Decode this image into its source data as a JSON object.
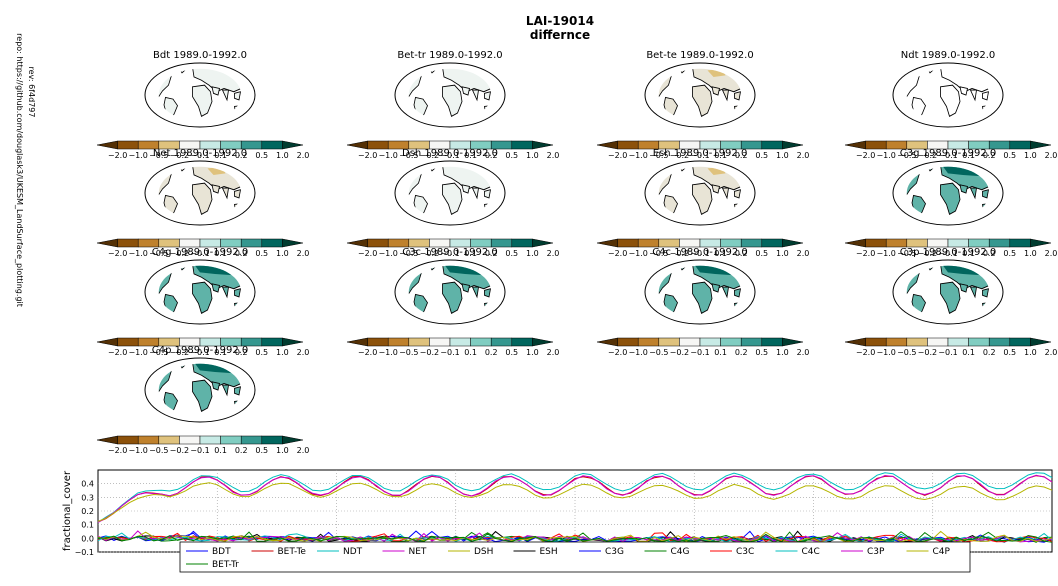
{
  "figure": {
    "title_line1": "LAI-19014",
    "title_line2": "differnce",
    "rev_line1": "rev: 6f4d797",
    "rev_line2": "repo: https://github.com/douglask3/UKESM_LandSurface_plotting.git"
  },
  "colorbar": {
    "colors": [
      "#543005",
      "#8c510a",
      "#bf812d",
      "#dfc27d",
      "#f6f6f4",
      "#c7eae5",
      "#80cdc1",
      "#35978f",
      "#01665e",
      "#003c30"
    ],
    "ticks": [
      "−2.0",
      "−1.0",
      "−0.5",
      "−0.2",
      "−0.1",
      "0.1",
      "0.2",
      "0.5",
      "1.0",
      "2.0"
    ]
  },
  "maps": [
    {
      "title": "Bdt 1989.0-1992.0",
      "style": "pale"
    },
    {
      "title": "Bet-tr 1989.0-1992.0",
      "style": "pale"
    },
    {
      "title": "Bet-te 1989.0-1992.0",
      "style": "brown"
    },
    {
      "title": "Ndt 1989.0-1992.0",
      "style": "blank"
    },
    {
      "title": "Net 1989.0-1992.0",
      "style": "brown"
    },
    {
      "title": "Dsh 1989.0-1992.0",
      "style": "pale"
    },
    {
      "title": "Esh 1989.0-1992.0",
      "style": "brown"
    },
    {
      "title": "C3g 1989.0-1992.0",
      "style": "teal"
    },
    {
      "title": "C4g 1989.0-1992.0",
      "style": "teal"
    },
    {
      "title": "C3c 1989.0-1992.0",
      "style": "teal"
    },
    {
      "title": "C4c 1989.0-1992.0",
      "style": "teal"
    },
    {
      "title": "C3p 1989.0-1992.0",
      "style": "teal"
    },
    {
      "title": "C4p 1989.0-1992.0",
      "style": "teal"
    }
  ],
  "chart_data": {
    "type": "line",
    "ylabel": "fractional_cover",
    "ylim": [
      -0.1,
      0.5
    ],
    "yticks": [
      "0.4",
      "0.3",
      "0.2",
      "0.1",
      "0.0",
      "−0.1"
    ],
    "grid": true,
    "legend_position": "bottom",
    "n_points": 121,
    "series": [
      {
        "name": "BDT",
        "color": "#0000ff",
        "family": "low",
        "seed": 1
      },
      {
        "name": "BET-Te",
        "color": "#cc0000",
        "family": "net",
        "seed": 2
      },
      {
        "name": "NDT",
        "color": "#00bfbf",
        "family": "ndt",
        "seed": 3
      },
      {
        "name": "NET",
        "color": "#cc00cc",
        "family": "net",
        "seed": 4
      },
      {
        "name": "DSH",
        "color": "#b5b500",
        "family": "dsh",
        "seed": 5
      },
      {
        "name": "ESH",
        "color": "#000000",
        "family": "low",
        "seed": 6
      },
      {
        "name": "C3G",
        "color": "#0000ff",
        "family": "low",
        "seed": 7
      },
      {
        "name": "C4G",
        "color": "#008000",
        "family": "low",
        "seed": 8
      },
      {
        "name": "C3C",
        "color": "#ff0000",
        "family": "low",
        "seed": 9
      },
      {
        "name": "C4C",
        "color": "#00bfbf",
        "family": "low",
        "seed": 10
      },
      {
        "name": "C3P",
        "color": "#cc00cc",
        "family": "low",
        "seed": 11
      },
      {
        "name": "C4P",
        "color": "#b5b500",
        "family": "low",
        "seed": 12
      },
      {
        "name": "BET-Tr",
        "color": "#008000",
        "family": "low",
        "seed": 13
      }
    ]
  }
}
